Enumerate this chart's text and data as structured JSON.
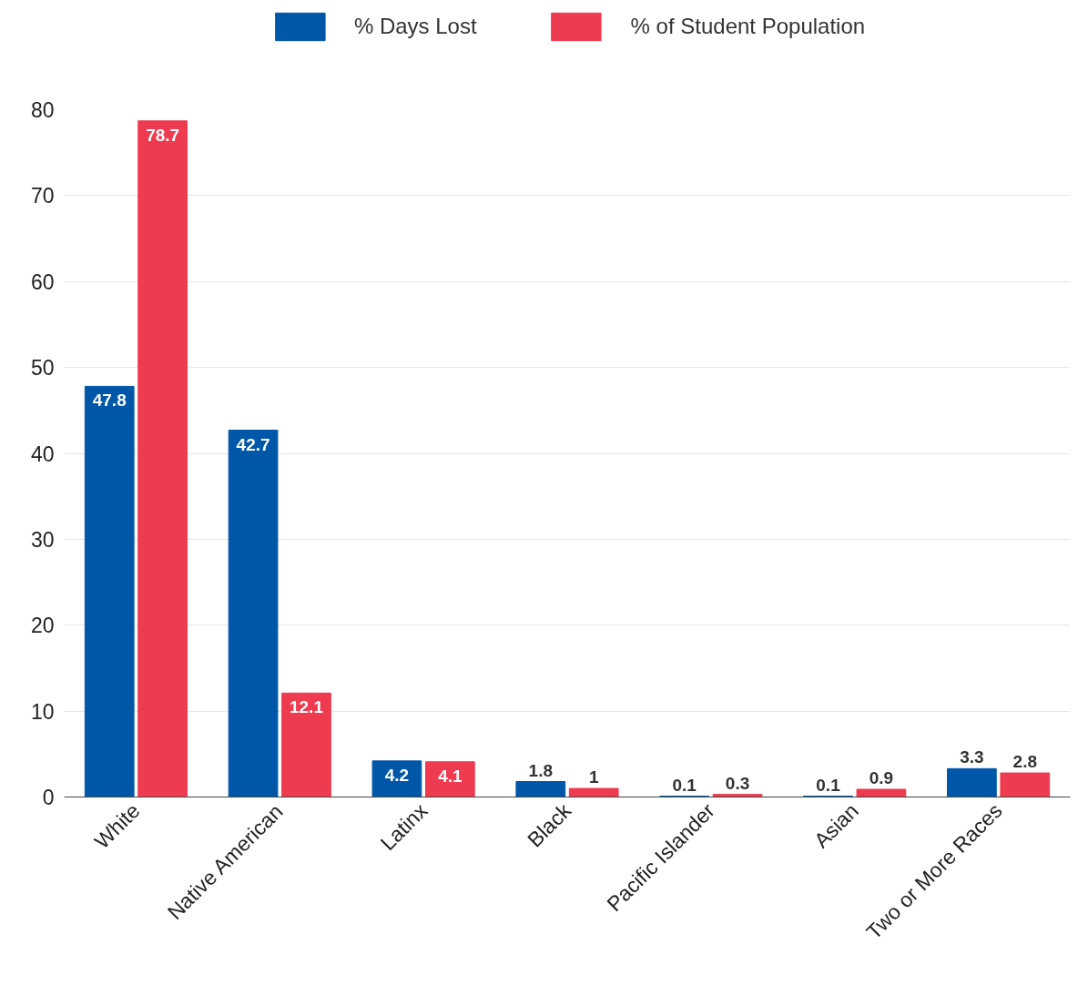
{
  "chart_data": {
    "type": "bar",
    "categories": [
      "White",
      "Native American",
      "Latinx",
      "Black",
      "Pacific Islander",
      "Asian",
      "Two or More Races"
    ],
    "series": [
      {
        "name": "% Days Lost",
        "color": "#0057a8",
        "values": [
          47.8,
          42.7,
          4.2,
          1.8,
          0.1,
          0.1,
          3.3
        ]
      },
      {
        "name": "% of Student Population",
        "color": "#ee3b4f",
        "values": [
          78.7,
          12.1,
          4.1,
          1,
          0.3,
          0.9,
          2.8
        ]
      }
    ],
    "ylim": [
      0,
      80
    ],
    "yticks": [
      0,
      10,
      20,
      30,
      40,
      50,
      60,
      70,
      80
    ],
    "grid": "y",
    "legend": "top",
    "data_labels": true
  }
}
